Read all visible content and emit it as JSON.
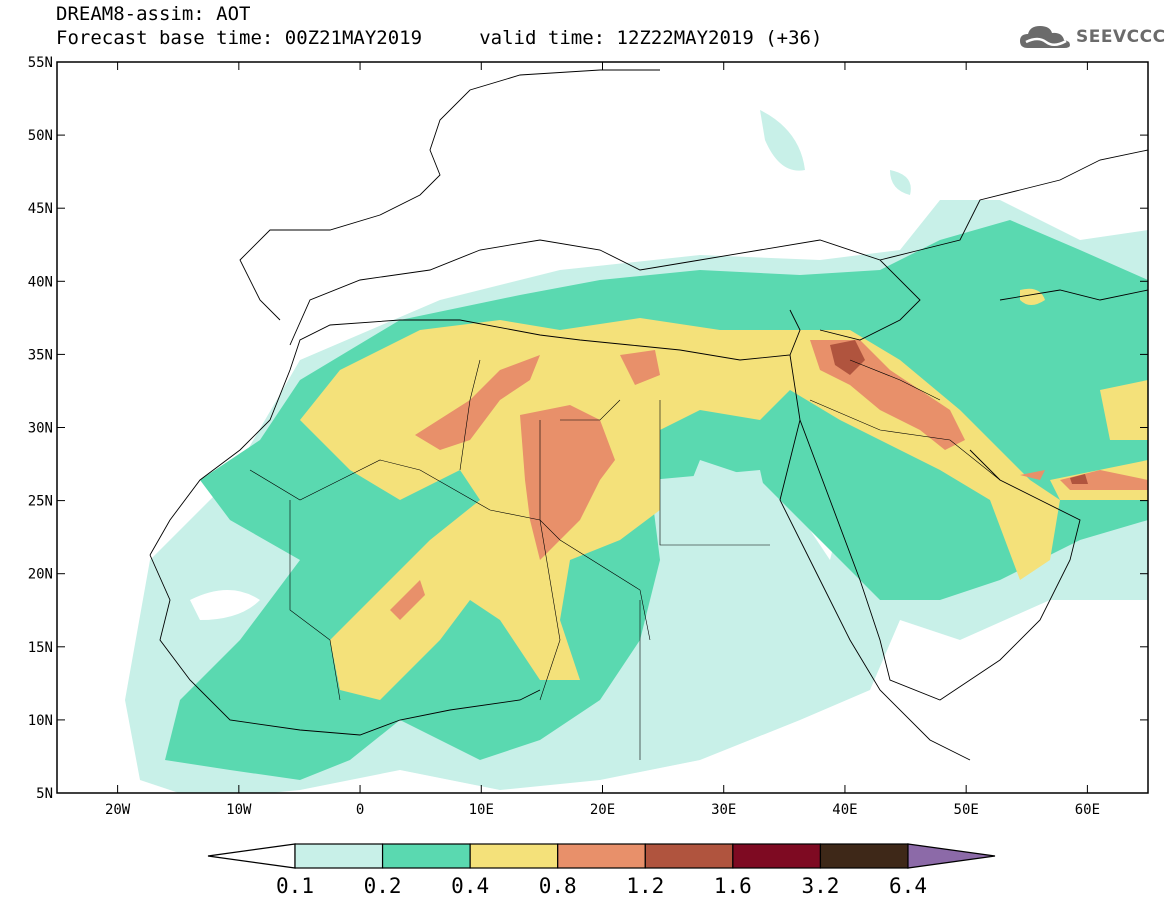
{
  "header": {
    "title_line1": "DREAM8-assim: AOT",
    "title_line2": "Forecast base time: 00Z21MAY2019     valid time: 12Z22MAY2019 (+36)"
  },
  "logo": {
    "text": "SEEVCCC",
    "icon": "cloud-icon"
  },
  "map": {
    "lon_range": [
      -25,
      65
    ],
    "lat_range": [
      5,
      55
    ],
    "lat_labels": [
      "5N",
      "10N",
      "15N",
      "20N",
      "25N",
      "30N",
      "35N",
      "40N",
      "45N",
      "50N",
      "55N"
    ],
    "lon_labels": [
      "20W",
      "10W",
      "0",
      "10E",
      "20E",
      "30E",
      "40E",
      "50E",
      "60E"
    ]
  },
  "legend": {
    "labels": [
      "0.1",
      "0.2",
      "0.4",
      "0.8",
      "1.2",
      "1.6",
      "3.2",
      "6.4"
    ],
    "colors": [
      "#ffffff",
      "#c8f0e8",
      "#5ad9b0",
      "#f4e17a",
      "#e8906a",
      "#b0543e",
      "#7e0a22",
      "#3e2818",
      "#8c6aa8"
    ]
  }
}
